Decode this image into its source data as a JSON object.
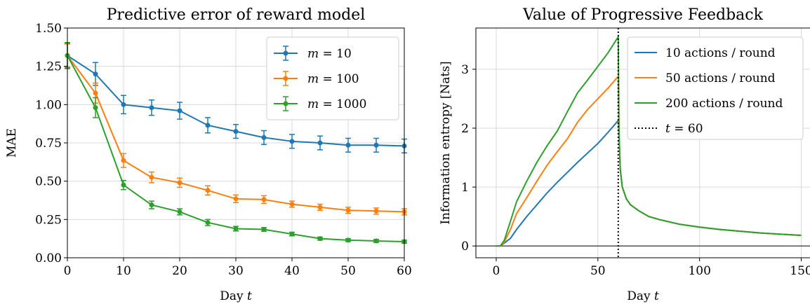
{
  "chart_data": [
    {
      "type": "line",
      "title": "Predictive error of reward model",
      "xlabel": "Day t",
      "ylabel": "MAE",
      "xlim": [
        0,
        60
      ],
      "ylim": [
        0,
        1.5
      ],
      "xticks": [
        0,
        10,
        20,
        30,
        40,
        50,
        60
      ],
      "yticks": [
        0.0,
        0.25,
        0.5,
        0.75,
        1.0,
        1.25,
        1.5
      ],
      "ytick_labels": [
        "0.00",
        "0.25",
        "0.50",
        "0.75",
        "1.00",
        "1.25",
        "1.50"
      ],
      "grid": true,
      "legend_position": "top-right",
      "x": [
        0,
        5,
        10,
        15,
        20,
        25,
        30,
        35,
        40,
        45,
        50,
        55,
        60
      ],
      "series": [
        {
          "name": "m = 10",
          "color": "#1f77b4",
          "values": [
            1.32,
            1.2,
            1.0,
            0.98,
            0.96,
            0.865,
            0.825,
            0.785,
            0.76,
            0.75,
            0.735,
            0.735,
            0.73
          ],
          "errors": [
            0.08,
            0.075,
            0.06,
            0.05,
            0.055,
            0.05,
            0.045,
            0.045,
            0.045,
            0.045,
            0.045,
            0.045,
            0.045
          ]
        },
        {
          "name": "m = 100",
          "color": "#ff7f0e",
          "values": [
            1.32,
            1.075,
            0.635,
            0.525,
            0.49,
            0.44,
            0.385,
            0.38,
            0.35,
            0.33,
            0.31,
            0.305,
            0.3
          ],
          "errors": [
            0.075,
            0.065,
            0.045,
            0.035,
            0.03,
            0.03,
            0.025,
            0.025,
            0.02,
            0.02,
            0.02,
            0.02,
            0.02
          ]
        },
        {
          "name": "m = 1000",
          "color": "#2ca02c",
          "values": [
            1.32,
            0.98,
            0.475,
            0.345,
            0.3,
            0.23,
            0.19,
            0.185,
            0.155,
            0.125,
            0.115,
            0.11,
            0.105
          ],
          "errors": [
            0.085,
            0.065,
            0.03,
            0.025,
            0.02,
            0.02,
            0.015,
            0.012,
            0.012,
            0.01,
            0.01,
            0.01,
            0.01
          ]
        }
      ]
    },
    {
      "type": "line",
      "title": "Value of Progressive Feedback",
      "xlabel": "Day t",
      "ylabel": "Information entropy [Nats]",
      "xlim": [
        -10,
        155
      ],
      "ylim": [
        -0.2,
        3.7
      ],
      "xticks": [
        0,
        50,
        100,
        150
      ],
      "yticks": [
        0,
        1,
        2,
        3
      ],
      "grid": true,
      "legend_position": "top-right",
      "vline": {
        "x": 60,
        "name": "t = 60",
        "style": "dotted",
        "color": "#000000"
      },
      "hline": {
        "y": 0,
        "color": "#000000"
      },
      "series": [
        {
          "name": "10 actions / round",
          "color": "#1f77b4",
          "points": [
            [
              0,
              0
            ],
            [
              2,
              0
            ],
            [
              4,
              0.05
            ],
            [
              7,
              0.13
            ],
            [
              10,
              0.28
            ],
            [
              15,
              0.5
            ],
            [
              20,
              0.7
            ],
            [
              25,
              0.9
            ],
            [
              30,
              1.08
            ],
            [
              35,
              1.25
            ],
            [
              40,
              1.42
            ],
            [
              45,
              1.58
            ],
            [
              50,
              1.74
            ],
            [
              55,
              1.93
            ],
            [
              60,
              2.13
            ]
          ]
        },
        {
          "name": "50 actions / round",
          "color": "#ff7f0e",
          "points": [
            [
              0,
              0
            ],
            [
              2,
              0
            ],
            [
              4,
              0.07
            ],
            [
              7,
              0.28
            ],
            [
              10,
              0.55
            ],
            [
              15,
              0.82
            ],
            [
              20,
              1.1
            ],
            [
              25,
              1.37
            ],
            [
              30,
              1.6
            ],
            [
              35,
              1.82
            ],
            [
              40,
              2.1
            ],
            [
              45,
              2.32
            ],
            [
              50,
              2.5
            ],
            [
              55,
              2.68
            ],
            [
              60,
              2.88
            ]
          ]
        },
        {
          "name": "200 actions / round",
          "color": "#2ca02c",
          "points": [
            [
              0,
              0
            ],
            [
              2,
              0
            ],
            [
              4,
              0.1
            ],
            [
              7,
              0.42
            ],
            [
              10,
              0.75
            ],
            [
              15,
              1.1
            ],
            [
              20,
              1.42
            ],
            [
              25,
              1.7
            ],
            [
              30,
              1.95
            ],
            [
              35,
              2.28
            ],
            [
              40,
              2.6
            ],
            [
              45,
              2.82
            ],
            [
              50,
              3.05
            ],
            [
              55,
              3.28
            ],
            [
              60,
              3.55
            ]
          ]
        }
      ],
      "decay_shared": {
        "color": "#2ca02c",
        "points": [
          [
            60.4,
            1.9
          ],
          [
            61,
            1.3
          ],
          [
            62,
            1.0
          ],
          [
            64,
            0.8
          ],
          [
            66,
            0.7
          ],
          [
            70,
            0.6
          ],
          [
            75,
            0.5
          ],
          [
            80,
            0.45
          ],
          [
            90,
            0.37
          ],
          [
            100,
            0.32
          ],
          [
            110,
            0.28
          ],
          [
            120,
            0.25
          ],
          [
            130,
            0.22
          ],
          [
            140,
            0.2
          ],
          [
            150,
            0.18
          ]
        ]
      }
    }
  ]
}
